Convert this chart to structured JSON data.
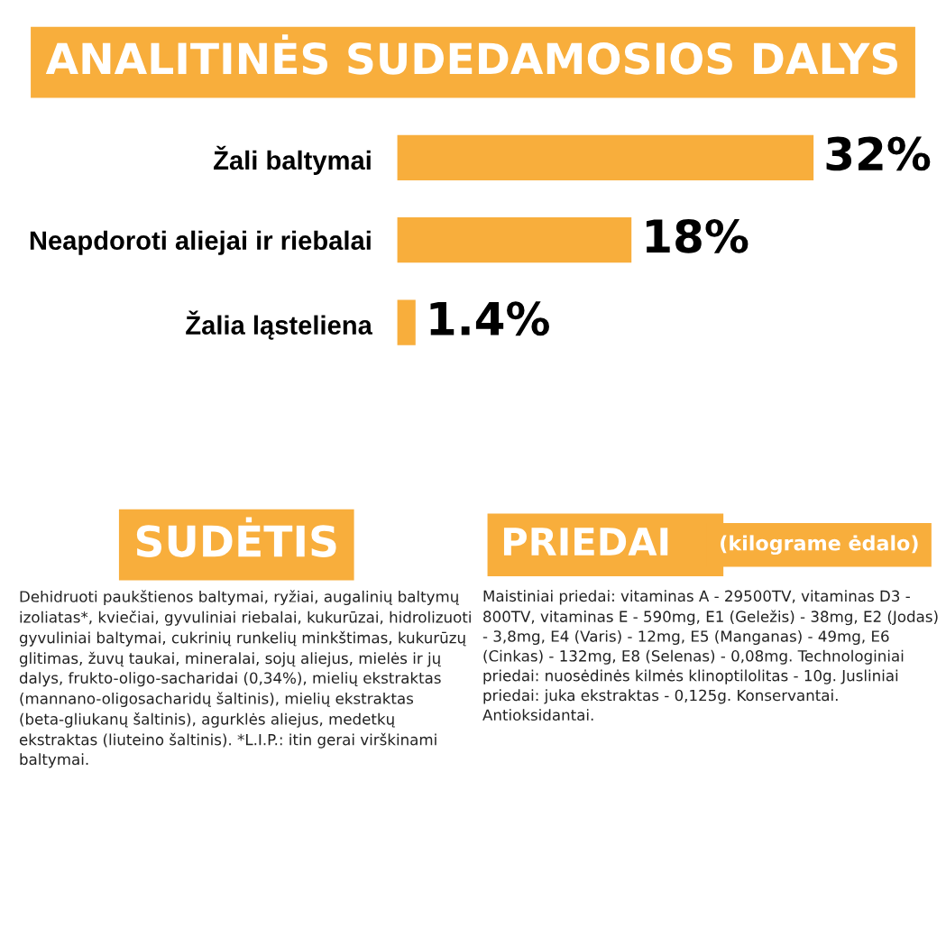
{
  "chart_data": [
    {
      "type": "bar",
      "orientation": "horizontal",
      "title": "ANALITINĖS SUDEDAMOSIOS DALYS",
      "categories": [
        "Žali baltymai",
        "Neapdoroti aliejai ir riebalai",
        "Žalia ląsteliena"
      ],
      "values": [
        32,
        18,
        1.4
      ],
      "value_labels": [
        "32%",
        "18%",
        "1.4%"
      ],
      "color": "#f8ae3c"
    },
    {
      "type": "other",
      "title": "SUDĖTIS",
      "annotations": [
        "Dehidruoti paukštienos baltymai, ryžiai, augalinių baltymų izoliatas*, kviečiai, gyvuliniai riebalai, kukurūzai, hidrolizuoti gyvuliniai baltymai, cukrinių runkelių minkštimas, kukurūzų glitimas, žuvų taukai, mineralai, sojų aliejus, mielės ir jų dalys, frukto-oligo-sacharidai (0,34%), mielių ekstraktas (mannano-oligosacharidų šaltinis), mielių ekstraktas (beta-gliukanų šaltinis), agurklės aliejus, medetkų ekstraktas (liuteino šaltinis). *L.I.P.: itin gerai virškinami baltymai."
      ]
    },
    {
      "type": "other",
      "title": "PRIEDAI",
      "subtitle": "(kilograme ėdalo)",
      "annotations": [
        "Maistiniai priedai: vitaminas A - 29500TV, vitaminas D3 - 800TV, vitaminas E - 590mg, E1 (Geležis) - 38mg, E2 (Jodas) - 3,8mg, E4 (Varis) - 12mg, E5 (Manganas) - 49mg, E6 (Cinkas) - 132mg, E8 (Selenas) - 0,08mg. Technologiniai priedai: nuosėdinės kilmės klinoptilolitas - 10g. Jusliniai priedai: juka ekstraktas - 0,125g. Konservantai. Antioksidantai."
      ]
    }
  ]
}
